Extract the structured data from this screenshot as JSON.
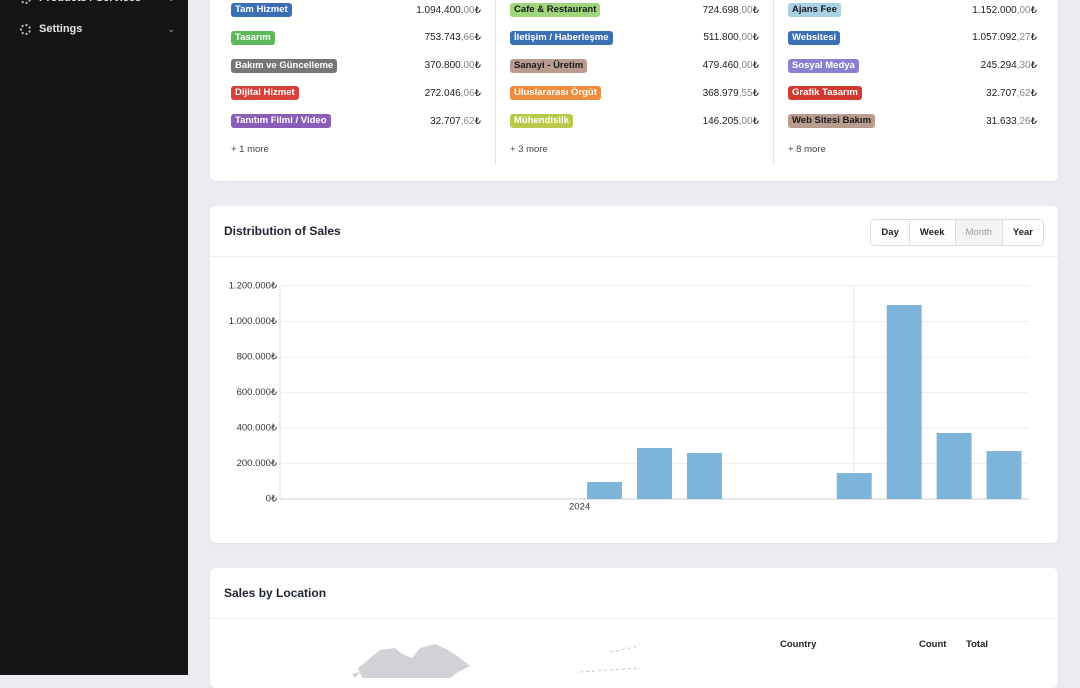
{
  "sidebar": {
    "items": [
      "Products / Services",
      "Settings"
    ]
  },
  "summary": {
    "columns": [
      {
        "items": [
          {
            "label": "Tam Hizmet",
            "color": "#3b6fb3",
            "text_color": "#ffffff",
            "amount": "1.094.400,00₺"
          },
          {
            "label": "Tasarım",
            "color": "#5db85b",
            "text_color": "#ffffff",
            "amount": "753.743,66₺"
          },
          {
            "label": "Bakım ve Güncelleme",
            "color": "#767676",
            "text_color": "#ffffff",
            "amount": "370.800,00₺"
          },
          {
            "label": "Dijital Hizmet",
            "color": "#d8413a",
            "text_color": "#ffffff",
            "amount": "272.046,06₺"
          },
          {
            "label": "Tanıtım Filmi / Video",
            "color": "#8a5db6",
            "text_color": "#ffffff",
            "amount": "32.707,62₺"
          }
        ],
        "more": "+ 1 more"
      },
      {
        "items": [
          {
            "label": "Cafe & Restaurant",
            "color": "#9ed67c",
            "text_color": "#1a1a1a",
            "amount": "724.698,00₺"
          },
          {
            "label": "İletişim / Haberleşme",
            "color": "#3b6fb3",
            "text_color": "#ffffff",
            "amount": "511.800,00₺"
          },
          {
            "label": "Sanayi - Üretim",
            "color": "#b99b90",
            "text_color": "#1a1a1a",
            "amount": "479.460,00₺"
          },
          {
            "label": "Uluslararası Örgüt",
            "color": "#f08a3c",
            "text_color": "#ffffff",
            "amount": "368.979,55₺"
          },
          {
            "label": "Mühendislik",
            "color": "#b9c94b",
            "text_color": "#ffffff",
            "amount": "146.205,00₺"
          }
        ],
        "more": "+ 3 more"
      },
      {
        "items": [
          {
            "label": "Ajans Fee",
            "color": "#a9d1e6",
            "text_color": "#1a1a1a",
            "amount": "1.152.000,00₺"
          },
          {
            "label": "Websitesi",
            "color": "#3b6fb3",
            "text_color": "#ffffff",
            "amount": "1.057.092,27₺"
          },
          {
            "label": "Sosyal Medya",
            "color": "#8a80d1",
            "text_color": "#ffffff",
            "amount": "245.294,30₺"
          },
          {
            "label": "Grafik Tasarım",
            "color": "#d23a30",
            "text_color": "#ffffff",
            "amount": "32.707,62₺"
          },
          {
            "label": "Web Sitesi Bakım",
            "color": "#b99b90",
            "text_color": "#1a1a1a",
            "amount": "31.633,26₺"
          }
        ],
        "more": "+ 8 more"
      }
    ]
  },
  "distribution": {
    "title": "Distribution of Sales",
    "buttons": [
      "Day",
      "Week",
      "Month",
      "Year"
    ],
    "selected": 2
  },
  "chart_data": {
    "type": "bar",
    "categories": [
      null,
      null,
      null,
      null,
      null,
      null,
      "2024",
      null,
      null,
      null,
      null,
      null,
      null,
      null,
      null
    ],
    "values": [
      null,
      null,
      null,
      null,
      null,
      null,
      96000,
      287000,
      259000,
      null,
      null,
      146000,
      1093000,
      372000,
      270000
    ],
    "color": "#7db4da",
    "ylim": [
      0,
      1200000
    ],
    "yticks": [
      {
        "value": 0,
        "label": "0₺"
      },
      {
        "value": 200000,
        "label": "200.000₺"
      },
      {
        "value": 400000,
        "label": "400.000₺"
      },
      {
        "value": 600000,
        "label": "600.000₺"
      },
      {
        "value": 800000,
        "label": "800.000₺"
      },
      {
        "value": 1000000,
        "label": "1.000.000₺"
      },
      {
        "value": 1200000,
        "label": "1.200.000₺"
      }
    ],
    "grid": true
  },
  "location": {
    "title": "Sales by Location",
    "columns": [
      "Country",
      "Count",
      "Total"
    ]
  }
}
